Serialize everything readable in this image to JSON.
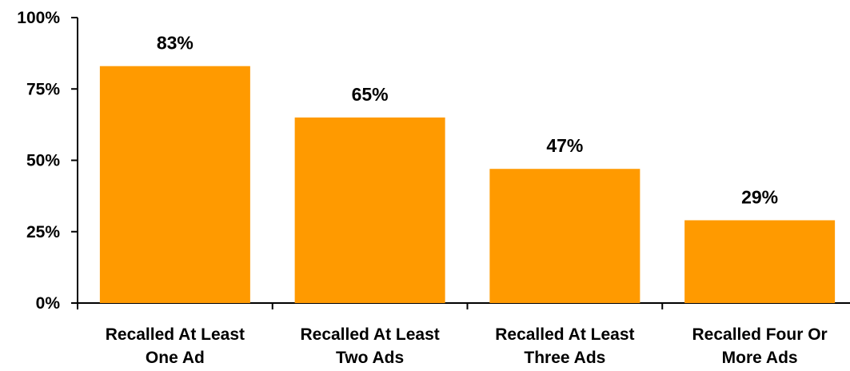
{
  "chart_data": {
    "type": "bar",
    "categories": [
      [
        "Recalled At Least",
        "One Ad"
      ],
      [
        "Recalled At Least",
        "Two Ads"
      ],
      [
        "Recalled At Least",
        "Three Ads"
      ],
      [
        "Recalled Four Or",
        "More Ads"
      ]
    ],
    "values": [
      83,
      65,
      47,
      29
    ],
    "data_labels": [
      "83%",
      "65%",
      "47%",
      "29%"
    ],
    "yticks": [
      {
        "value": 0,
        "label": "0%"
      },
      {
        "value": 25,
        "label": "25%"
      },
      {
        "value": 50,
        "label": "50%"
      },
      {
        "value": 75,
        "label": "75%"
      },
      {
        "value": 100,
        "label": "100%"
      }
    ],
    "ylim": [
      0,
      100
    ],
    "grid": false,
    "legend": "none",
    "colors": {
      "bar": "#FF9A00",
      "axis": "#000000"
    }
  }
}
